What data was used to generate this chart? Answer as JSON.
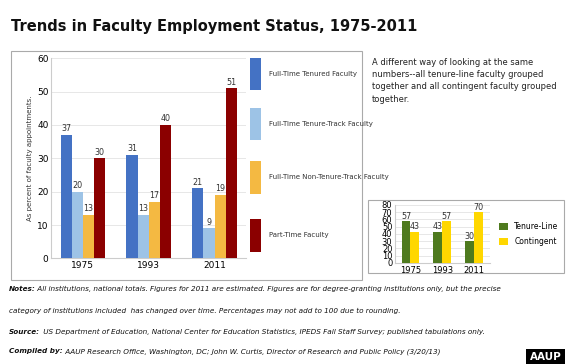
{
  "title": "Trends in Faculty Employment Status, 1975-2011",
  "years": [
    "1975",
    "1993",
    "2011"
  ],
  "left_chart": {
    "series": {
      "Full-Time Tenured Faculty": [
        37,
        31,
        21
      ],
      "Full-Time Tenure-Track Faculty": [
        20,
        13,
        9
      ],
      "Full-Time Non-Tenure-Track Faculty": [
        13,
        17,
        19
      ],
      "Part-Time Faculty": [
        30,
        40,
        51
      ]
    },
    "colors": {
      "Full-Time Tenured Faculty": "#4472C4",
      "Full-Time Tenure-Track Faculty": "#9DC3E6",
      "Full-Time Non-Tenure-Track Faculty": "#F4B942",
      "Part-Time Faculty": "#8B0000"
    },
    "ylim": [
      0,
      60
    ],
    "yticks": [
      0,
      10,
      20,
      30,
      40,
      50,
      60
    ],
    "ylabel": "As percent of faculty appointments.",
    "legend_labels": [
      "Full-Time Tenured Faculty",
      "Full-Time Tenure-Track Faculty",
      "Full-Time Non-Tenure-Track Faculty",
      "Part-Time Faculty"
    ]
  },
  "right_chart": {
    "series": {
      "Tenure-Line": [
        57,
        43,
        30
      ],
      "Contingent": [
        43,
        57,
        70
      ]
    },
    "colors": {
      "Tenure-Line": "#4E7A1E",
      "Contingent": "#FFD700"
    },
    "ylim": [
      0,
      80
    ],
    "yticks": [
      0,
      10,
      20,
      30,
      40,
      50,
      60,
      70,
      80
    ],
    "legend_labels": [
      "Tenure-Line",
      "Contingent"
    ]
  },
  "right_text": "A different way of looking at the same\nnumbers--all tenure-line faculty grouped\ntogether and all contingent faculty grouped\ntogether.",
  "notes_line1_bold": "Notes: ",
  "notes_line1_rest": " All institutions, national totals. Figures for 2011 are estimated. Figures are for degree-granting institutions only, but the precise",
  "notes_line2": "category of institutions included  has changed over time. Percentages may not add to 100 due to rounding.",
  "source_bold": "Source: ",
  "source_rest": " US Department of Education, National Center for Education Statistics, IPEDS Fall Staff Survey; published tabulations only.",
  "compiled_bold": "Compiled by: ",
  "compiled_rest": " AAUP Research Office, Washington, DC; John W. Curtis, Director of Research and Public Policy (3/20/13)",
  "aaup_text": "AAUP",
  "bg_color": "#FFFFFF",
  "chart_bg": "#FFFFFF",
  "border_color": "#AAAAAA",
  "label_fontsize": 6.0,
  "tick_fontsize": 6.5,
  "bar_label_fontsize": 5.8
}
